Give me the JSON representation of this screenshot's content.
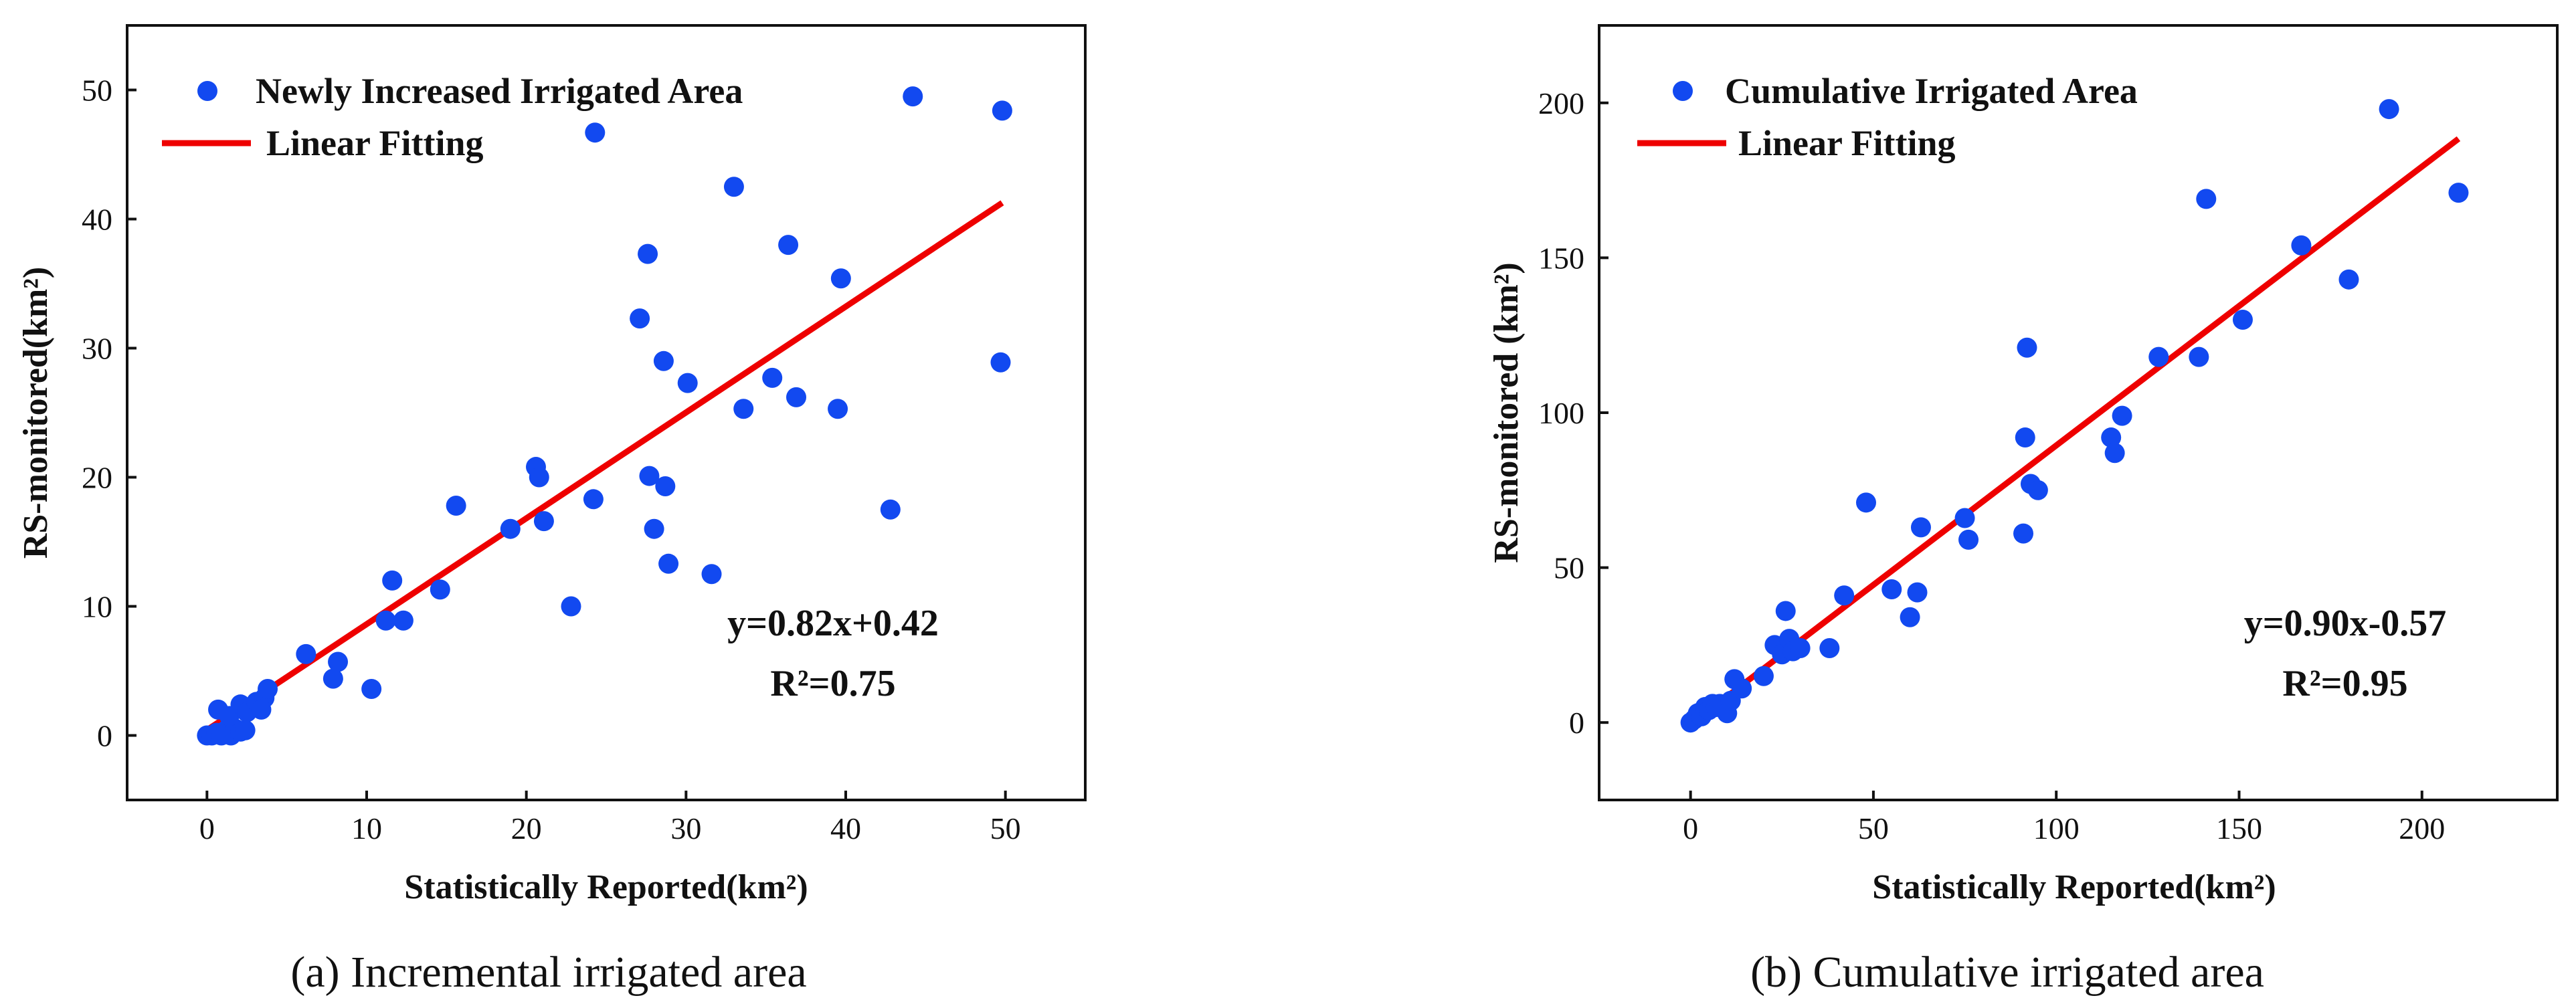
{
  "chart_data": [
    {
      "id": "a",
      "type": "scatter",
      "caption": "(a) Incremental irrigated area",
      "xlabel": "Statistically Reported(km²)",
      "ylabel": "RS-monitored(km²)",
      "xlim": [
        -5,
        55
      ],
      "ylim": [
        -5,
        55
      ],
      "xticks": [
        0,
        10,
        20,
        30,
        40,
        50
      ],
      "yticks": [
        0,
        10,
        20,
        30,
        40,
        50
      ],
      "legend": {
        "scatter": "Newly Increased Irrigated Area",
        "line": "Linear Fitting",
        "location": "top-left"
      },
      "equation": "y=0.82x+0.42",
      "r2": "R²=0.75",
      "fit": {
        "slope": 0.82,
        "intercept": 0.42,
        "x_range": [
          0,
          49.8
        ]
      },
      "point_color": "#1249f0",
      "line_color": "#ee0000",
      "series": [
        {
          "name": "Newly Increased Irrigated Area",
          "x": [
            0,
            0.3,
            0.6,
            0.9,
            1.2,
            1.5,
            1.8,
            2.1,
            2.4,
            0.7,
            1.4,
            2.1,
            2.5,
            3.1,
            3.6,
            3.4,
            3.8,
            6.2,
            7.9,
            8.2,
            10.3,
            11.2,
            11.6,
            12.3,
            14.6,
            15.6,
            19.0,
            20.6,
            20.8,
            21.1,
            22.8,
            24.2,
            24.3,
            27.1,
            27.6,
            27.7,
            28.0,
            28.6,
            28.7,
            28.9,
            30.1,
            31.6,
            33.0,
            33.6,
            35.4,
            36.4,
            36.9,
            39.5,
            39.7,
            42.8,
            44.2,
            49.7,
            49.8
          ],
          "y": [
            0,
            0,
            0.2,
            0,
            0.4,
            0,
            0.5,
            0.3,
            0.4,
            2.0,
            1.5,
            2.4,
            1.8,
            2.6,
            2.9,
            2.0,
            3.6,
            6.3,
            4.4,
            5.7,
            3.6,
            8.9,
            12.0,
            8.9,
            11.3,
            17.8,
            16.0,
            20.8,
            20.0,
            16.6,
            10.0,
            18.3,
            46.7,
            32.3,
            37.3,
            20.1,
            16.0,
            29.0,
            19.3,
            13.3,
            27.3,
            12.5,
            42.5,
            25.3,
            27.7,
            38.0,
            26.2,
            25.3,
            35.4,
            17.5,
            49.5,
            28.9,
            48.4
          ]
        }
      ]
    },
    {
      "id": "b",
      "type": "scatter",
      "caption": "(b) Cumulative irrigated area",
      "xlabel": "Statistically Reported(km²)",
      "ylabel": "RS-monitored (km²)",
      "xlim": [
        -25,
        237
      ],
      "ylim": [
        -25,
        225
      ],
      "xticks": [
        0,
        50,
        100,
        150,
        200
      ],
      "yticks": [
        0,
        50,
        100,
        150,
        200
      ],
      "legend": {
        "scatter": "Cumulative Irrigated Area",
        "line": "Linear Fitting",
        "location": "top-left"
      },
      "equation": "y=0.90x-0.57",
      "r2": "R²=0.95",
      "fit": {
        "slope": 0.9,
        "intercept": -0.57,
        "x_range": [
          0,
          210
        ]
      },
      "point_color": "#1249f0",
      "line_color": "#ee0000",
      "series": [
        {
          "name": "Cumulative Irrigated Area",
          "x": [
            0,
            1,
            2,
            3,
            4,
            5,
            6,
            7,
            8,
            10,
            11,
            12,
            14,
            20,
            23,
            25,
            26,
            27,
            28,
            30,
            38,
            42,
            48,
            55,
            60,
            62,
            63,
            75,
            76,
            91,
            91.5,
            92,
            93,
            95,
            115,
            116,
            118,
            128,
            139,
            141,
            151,
            167,
            180,
            191,
            210
          ],
          "y": [
            0,
            1,
            3,
            2,
            5,
            4,
            6,
            5,
            6,
            3,
            7,
            14,
            11,
            15,
            25,
            22,
            36,
            27,
            23,
            24,
            24,
            41,
            71,
            43,
            34,
            42,
            63,
            66,
            59,
            61,
            92,
            121,
            77,
            75,
            92,
            87,
            99,
            118,
            118,
            169,
            130,
            154,
            143,
            198,
            171
          ]
        }
      ]
    }
  ]
}
